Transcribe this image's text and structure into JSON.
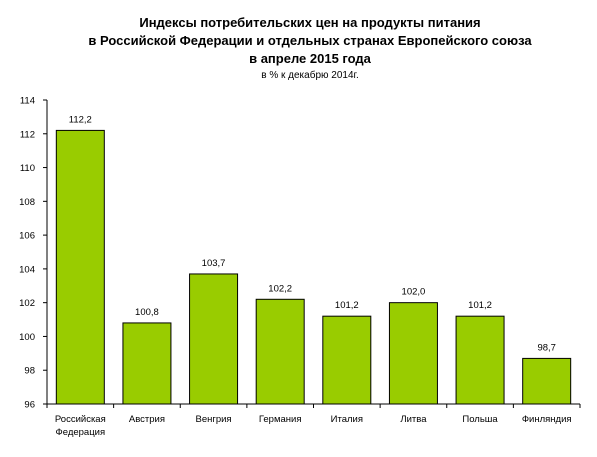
{
  "chart_data": {
    "type": "bar",
    "title_lines": [
      "Индексы потребительских цен на продукты питания",
      "в Российской Федерации и отдельных странах Европейского союза",
      "в апреле 2015 года"
    ],
    "subtitle": "в % к декабрю 2014г.",
    "categories": [
      [
        "Российская",
        "Федерация"
      ],
      [
        "Австрия"
      ],
      [
        "Венгрия"
      ],
      [
        "Германия"
      ],
      [
        "Италия"
      ],
      [
        "Литва"
      ],
      [
        "Польша"
      ],
      [
        "Финляндия"
      ]
    ],
    "values": [
      112.2,
      100.8,
      103.7,
      102.2,
      101.2,
      102.0,
      101.2,
      98.7
    ],
    "value_labels": [
      "112,2",
      "100,8",
      "103,7",
      "102,2",
      "101,2",
      "102,0",
      "101,2",
      "98,7"
    ],
    "ylim": [
      96,
      114
    ],
    "yticks": [
      "96",
      "98",
      "100",
      "102",
      "104",
      "106",
      "108",
      "110",
      "112",
      "114"
    ],
    "bar_color": "#99cc00",
    "grid": false,
    "legend": "none"
  }
}
